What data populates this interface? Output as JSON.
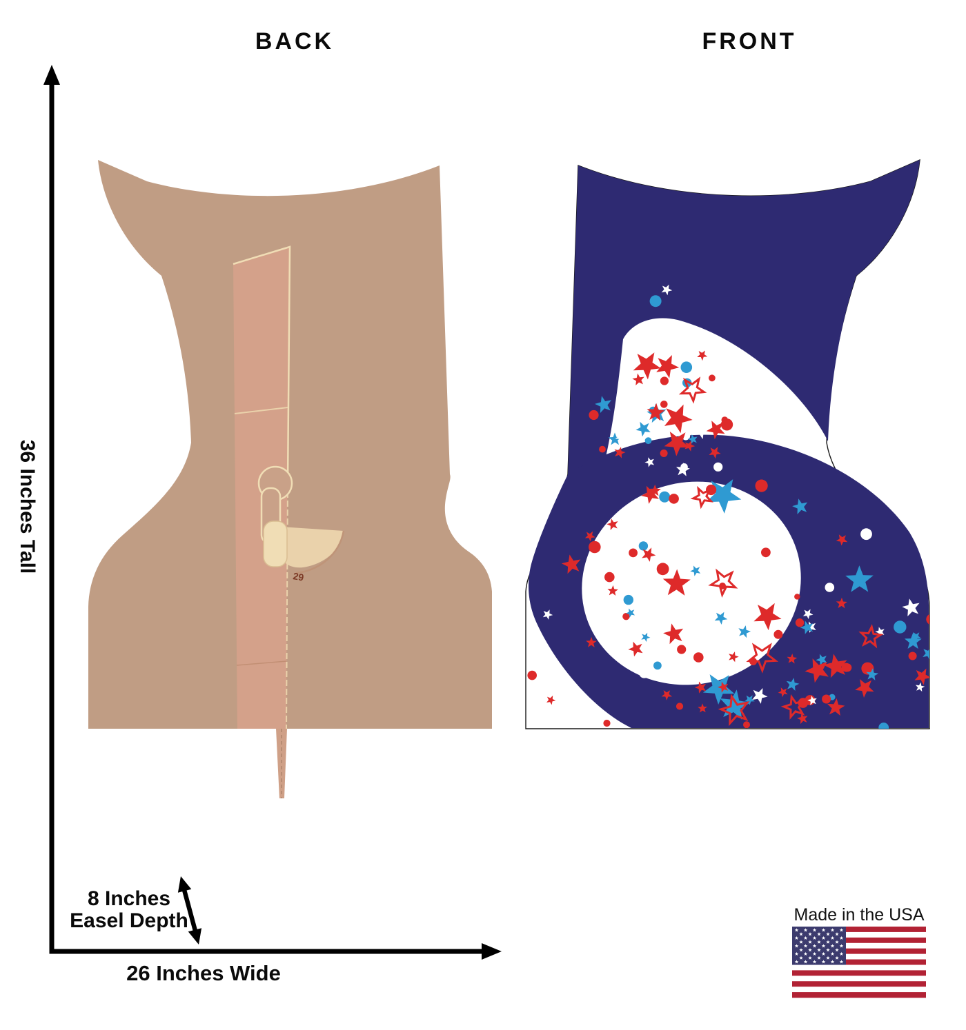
{
  "views": {
    "back_label": "BACK",
    "front_label": "FRONT"
  },
  "dimensions": {
    "height": "36 Inches Tall",
    "width": "26 Inches Wide",
    "easel_line1": "8 Inches",
    "easel_line2": "Easel Depth"
  },
  "badge": {
    "made_in": "Made in the USA"
  },
  "easel": {
    "marking": "29"
  },
  "product": {
    "numeral": "5"
  },
  "colors": {
    "navy": "#2e2a72",
    "red": "#de2a2a",
    "blue": "#2f9ad2",
    "white": "#ffffff",
    "tan": "#c09d84",
    "cardboard": "#d4a18a",
    "cardboard_light": "#dcab92",
    "cream": "#ead2ab",
    "cream_bright": "#f0ddb5",
    "flag_red": "#b22234",
    "flag_blue": "#3c3b6e",
    "ink": "#000000"
  },
  "confetti": {
    "seed": 11,
    "dots": 64,
    "stars": 82,
    "outline_stars": 8,
    "palette": [
      "#de2a2a",
      "#2f9ad2",
      "#ffffff"
    ]
  }
}
